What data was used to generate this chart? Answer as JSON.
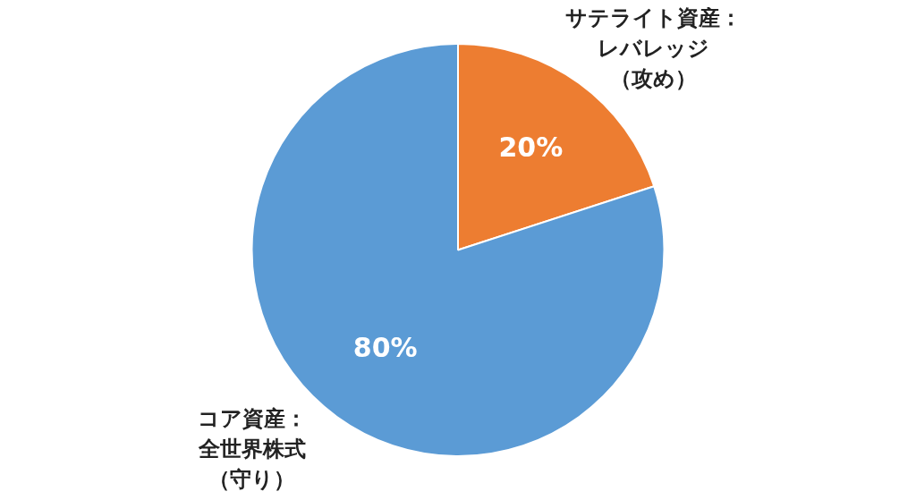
{
  "chart_data": {
    "type": "pie",
    "categories": [
      "サテライト資産：レバレッジ（攻め）",
      "コア資産：全世界株式（守り）"
    ],
    "values": [
      20,
      80
    ],
    "colors": [
      "#ed7d31",
      "#5b9bd5"
    ],
    "value_labels": [
      "20%",
      "80%"
    ],
    "legend": false
  }
}
